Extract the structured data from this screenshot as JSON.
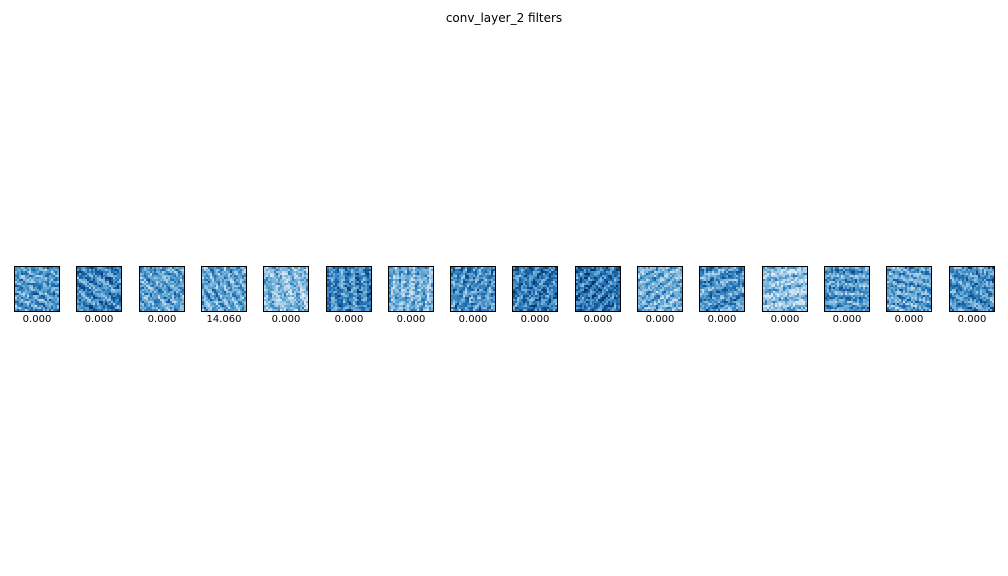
{
  "title": "conv_layer_2 filters",
  "chart_data": {
    "type": "heatmap",
    "title": "conv_layer_2 filters",
    "colormap": "Blues",
    "grid": false,
    "filters": [
      {
        "label": "0.000",
        "tone": 0.58
      },
      {
        "label": "0.000",
        "tone": 0.66
      },
      {
        "label": "0.000",
        "tone": 0.56
      },
      {
        "label": "14.060",
        "tone": 0.54
      },
      {
        "label": "0.000",
        "tone": 0.44
      },
      {
        "label": "0.000",
        "tone": 0.66
      },
      {
        "label": "0.000",
        "tone": 0.48
      },
      {
        "label": "0.000",
        "tone": 0.62
      },
      {
        "label": "0.000",
        "tone": 0.7
      },
      {
        "label": "0.000",
        "tone": 0.72
      },
      {
        "label": "0.000",
        "tone": 0.5
      },
      {
        "label": "0.000",
        "tone": 0.6
      },
      {
        "label": "0.000",
        "tone": 0.4
      },
      {
        "label": "0.000",
        "tone": 0.58
      },
      {
        "label": "0.000",
        "tone": 0.55
      },
      {
        "label": "0.000",
        "tone": 0.62
      }
    ]
  }
}
